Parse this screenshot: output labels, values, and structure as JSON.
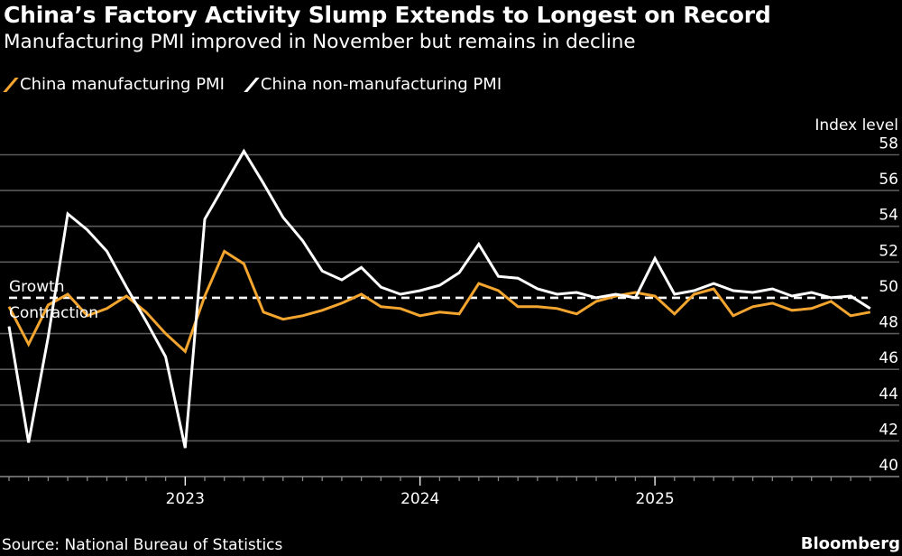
{
  "header": {
    "title": "China’s Factory Activity Slump Extends to Longest on Record",
    "subtitle": "Manufacturing PMI improved in November but remains in decline"
  },
  "footer": {
    "source": "Source: National Bureau of Statistics",
    "brand": "Bloomberg"
  },
  "colors": {
    "manufacturing": "#f3a530",
    "non_manufacturing": "#ffffff",
    "background": "#000000",
    "grid": "#5a5a5a"
  },
  "chart_data": {
    "type": "line",
    "title": "China’s Factory Activity Slump Extends to Longest on Record",
    "subtitle": "Manufacturing PMI improved in November but remains in decline",
    "ylabel": "Index level",
    "ylim": [
      40,
      58
    ],
    "yticks": [
      "40",
      "42",
      "44",
      "46",
      "48",
      "50",
      "52",
      "54",
      "56",
      "58"
    ],
    "xticks": [
      "2023",
      "2024",
      "2025"
    ],
    "grid": true,
    "legend_position": "top-left",
    "y_axis_side": "right",
    "reference_line": {
      "value": 50,
      "above_label": "Growth",
      "below_label": "Contraction"
    },
    "x": [
      "2022-03",
      "2022-04",
      "2022-05",
      "2022-06",
      "2022-07",
      "2022-08",
      "2022-09",
      "2022-10",
      "2022-11",
      "2022-12",
      "2023-01",
      "2023-02",
      "2023-03",
      "2023-04",
      "2023-05",
      "2023-06",
      "2023-07",
      "2023-08",
      "2023-09",
      "2023-10",
      "2023-11",
      "2023-12",
      "2024-01",
      "2024-02",
      "2024-03",
      "2024-04",
      "2024-05",
      "2024-06",
      "2024-07",
      "2024-08",
      "2024-09",
      "2024-10",
      "2024-11",
      "2024-12",
      "2025-01",
      "2025-02",
      "2025-03",
      "2025-04",
      "2025-05",
      "2025-06",
      "2025-07",
      "2025-08",
      "2025-09",
      "2025-10",
      "2025-11"
    ],
    "series": [
      {
        "name": "China manufacturing PMI",
        "color": "#f3a530",
        "values": [
          49.5,
          47.4,
          49.6,
          50.2,
          49.0,
          49.4,
          50.1,
          49.2,
          48.0,
          47.0,
          50.1,
          52.6,
          51.9,
          49.2,
          48.8,
          49.0,
          49.3,
          49.7,
          50.2,
          49.5,
          49.4,
          49.0,
          49.2,
          49.1,
          50.8,
          50.4,
          49.5,
          49.5,
          49.4,
          49.1,
          49.8,
          50.1,
          50.3,
          50.1,
          49.1,
          50.2,
          50.5,
          49.0,
          49.5,
          49.7,
          49.3,
          49.4,
          49.8,
          49.0,
          49.2
        ]
      },
      {
        "name": "China non-manufacturing PMI",
        "color": "#ffffff",
        "values": [
          48.4,
          41.9,
          47.8,
          54.7,
          53.8,
          52.6,
          50.6,
          48.7,
          46.7,
          41.6,
          54.4,
          56.3,
          58.2,
          56.4,
          54.5,
          53.2,
          51.5,
          51.0,
          51.7,
          50.6,
          50.2,
          50.4,
          50.7,
          51.4,
          53.0,
          51.2,
          51.1,
          50.5,
          50.2,
          50.3,
          50.0,
          50.2,
          50.0,
          52.2,
          50.2,
          50.4,
          50.8,
          50.4,
          50.3,
          50.5,
          50.1,
          50.3,
          50.0,
          50.1,
          49.4
        ]
      }
    ]
  }
}
